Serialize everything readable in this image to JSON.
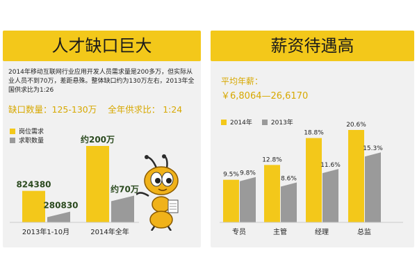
{
  "left": {
    "title": "人才缺口巨大",
    "desc": "2014年移动互联网行业应用开发人员需求量是200多万，但实际从业人员不到70万，差距悬殊。整体缺口约为130万左右，2013年全国供求比为1:26",
    "stat_gap": "缺口数量：125-130万",
    "stat_ratio": "全年供求比： 1:24"
  },
  "right": {
    "title": "薪资待遇高",
    "avg_label": "平均年薪：",
    "avg_value": "￥6,8064—26,6170"
  },
  "colors": {
    "yellow": "#f3c81a",
    "gray": "#9a9a9a",
    "accent": "#d7a800",
    "label": "#222222",
    "bar_label_dark": "#2b4a1f"
  },
  "icons": {
    "mascot": "ant-mascot-pointing"
  },
  "chart_data": [
    {
      "type": "bar",
      "title": "",
      "categories": [
        "2013年1-10月",
        "2014年全年"
      ],
      "series": [
        {
          "name": "岗位需求",
          "values": [
            824380,
            2000000
          ],
          "labels": [
            "824380",
            "约200万"
          ]
        },
        {
          "name": "求职数量",
          "values": [
            280830,
            700000
          ],
          "labels": [
            "280830",
            "约70万"
          ]
        }
      ],
      "legend": "top-left",
      "grid": false
    },
    {
      "type": "bar",
      "title": "",
      "categories": [
        "专员",
        "主管",
        "经理",
        "总监"
      ],
      "series": [
        {
          "name": "2014年",
          "values": [
            9.5,
            12.8,
            18.8,
            20.6
          ],
          "labels": [
            "9.5%",
            "12.8%",
            "18.8%",
            "20.6%"
          ]
        },
        {
          "name": "2013年",
          "values": [
            9.8,
            8.6,
            11.6,
            15.3
          ],
          "labels": [
            "9.8%",
            "8.6%",
            "11.6%",
            "15.3%"
          ]
        }
      ],
      "legend": "top-left",
      "grid": false
    }
  ]
}
